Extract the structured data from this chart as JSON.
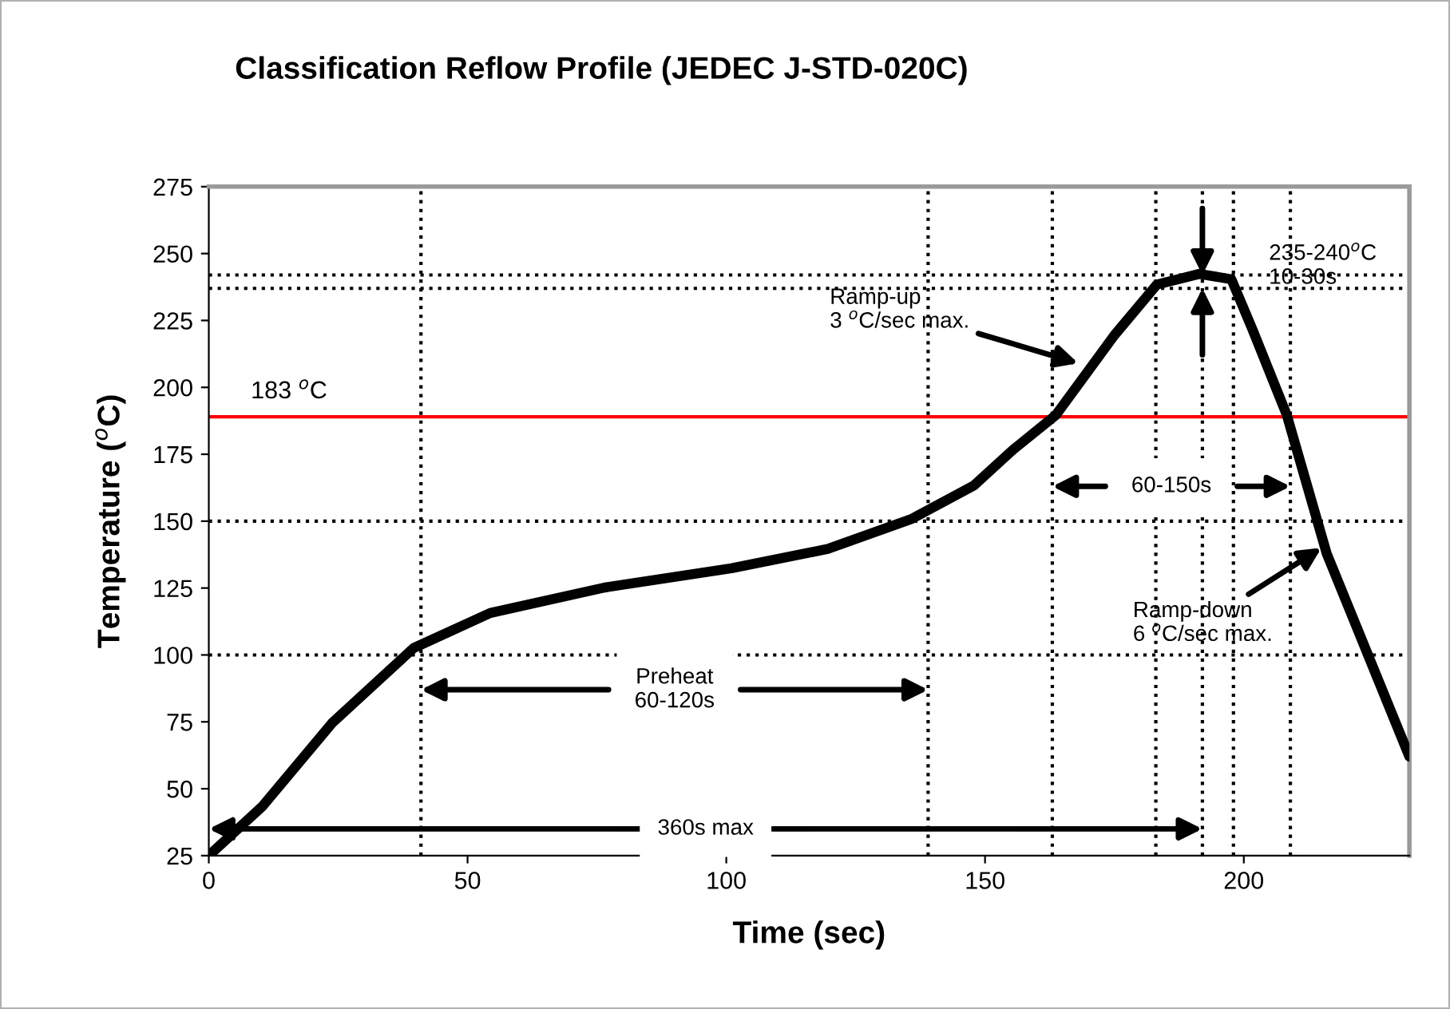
{
  "chart_data": {
    "type": "line",
    "title": "Classification Reflow Profile (JEDEC J-STD-020C)",
    "xlabel": "Time (sec)",
    "ylabel": "Temperature ($^{o}$C)",
    "x": [
      0,
      10.4,
      23.8,
      39.6,
      54.4,
      76.5,
      101,
      119.6,
      135.9,
      147.9,
      155.3,
      163.7,
      175,
      183.2,
      191.4,
      197.6,
      201.7,
      208.3,
      216,
      232
    ],
    "series": [
      {
        "color": "#000000",
        "values": [
          25,
          43.5,
          74.5,
          102.6,
          115.7,
          125.2,
          132.4,
          139.6,
          150.9,
          163.4,
          176.5,
          189.7,
          219.5,
          238.4,
          242.4,
          240.4,
          221.5,
          189.7,
          138,
          62
        ]
      }
    ],
    "xlim": [
      0,
      232
    ],
    "xticks": [
      0,
      50,
      100,
      150,
      200
    ],
    "ylim": [
      25,
      275
    ],
    "yticks": [
      25,
      50,
      75,
      100,
      125,
      150,
      175,
      200,
      225,
      250,
      275
    ],
    "grid": false,
    "legend": false,
    "marker": "none",
    "line_style": "solid",
    "ref_lines": [
      {
        "axis": "y",
        "value": 189,
        "label": "183 $^{o}$C",
        "color": "#ff0000",
        "line_style": "solid"
      },
      {
        "axis": "y",
        "value": 242,
        "line_style": "dotted"
      },
      {
        "axis": "y",
        "value": 237,
        "line_style": "dotted"
      },
      {
        "axis": "y",
        "value": 150,
        "line_style": "dotted"
      },
      {
        "axis": "y",
        "value": 100,
        "line_style": "dotted"
      },
      {
        "axis": "x",
        "value": 41,
        "line_style": "dotted"
      },
      {
        "axis": "x",
        "value": 139,
        "line_style": "dotted"
      },
      {
        "axis": "x",
        "value": 192,
        "line_style": "dotted"
      },
      {
        "axis": "x",
        "value": 163,
        "line_style": "dotted"
      },
      {
        "axis": "x",
        "value": 183,
        "line_style": "dotted"
      },
      {
        "axis": "x",
        "value": 198,
        "line_style": "dotted"
      },
      {
        "axis": "x",
        "value": 209,
        "line_style": "dotted"
      }
    ],
    "annotations": [
      {
        "text": "Ramp-up\n3 $^{o}$C/sec max.",
        "x": 168,
        "y": 209
      },
      {
        "text": "Ramp-down\n6 $^{o}$C/sec max.",
        "x": 215,
        "y": 140
      },
      "235-240$^{o}$C\n10-30s",
      {
        "text": "Preheat\n60-120s",
        "x": 139,
        "y": 87
      },
      {
        "text": "60-150s",
        "x": 209,
        "y": 163
      },
      {
        "text": "360s max",
        "x": 192,
        "y": 35
      }
    ]
  }
}
